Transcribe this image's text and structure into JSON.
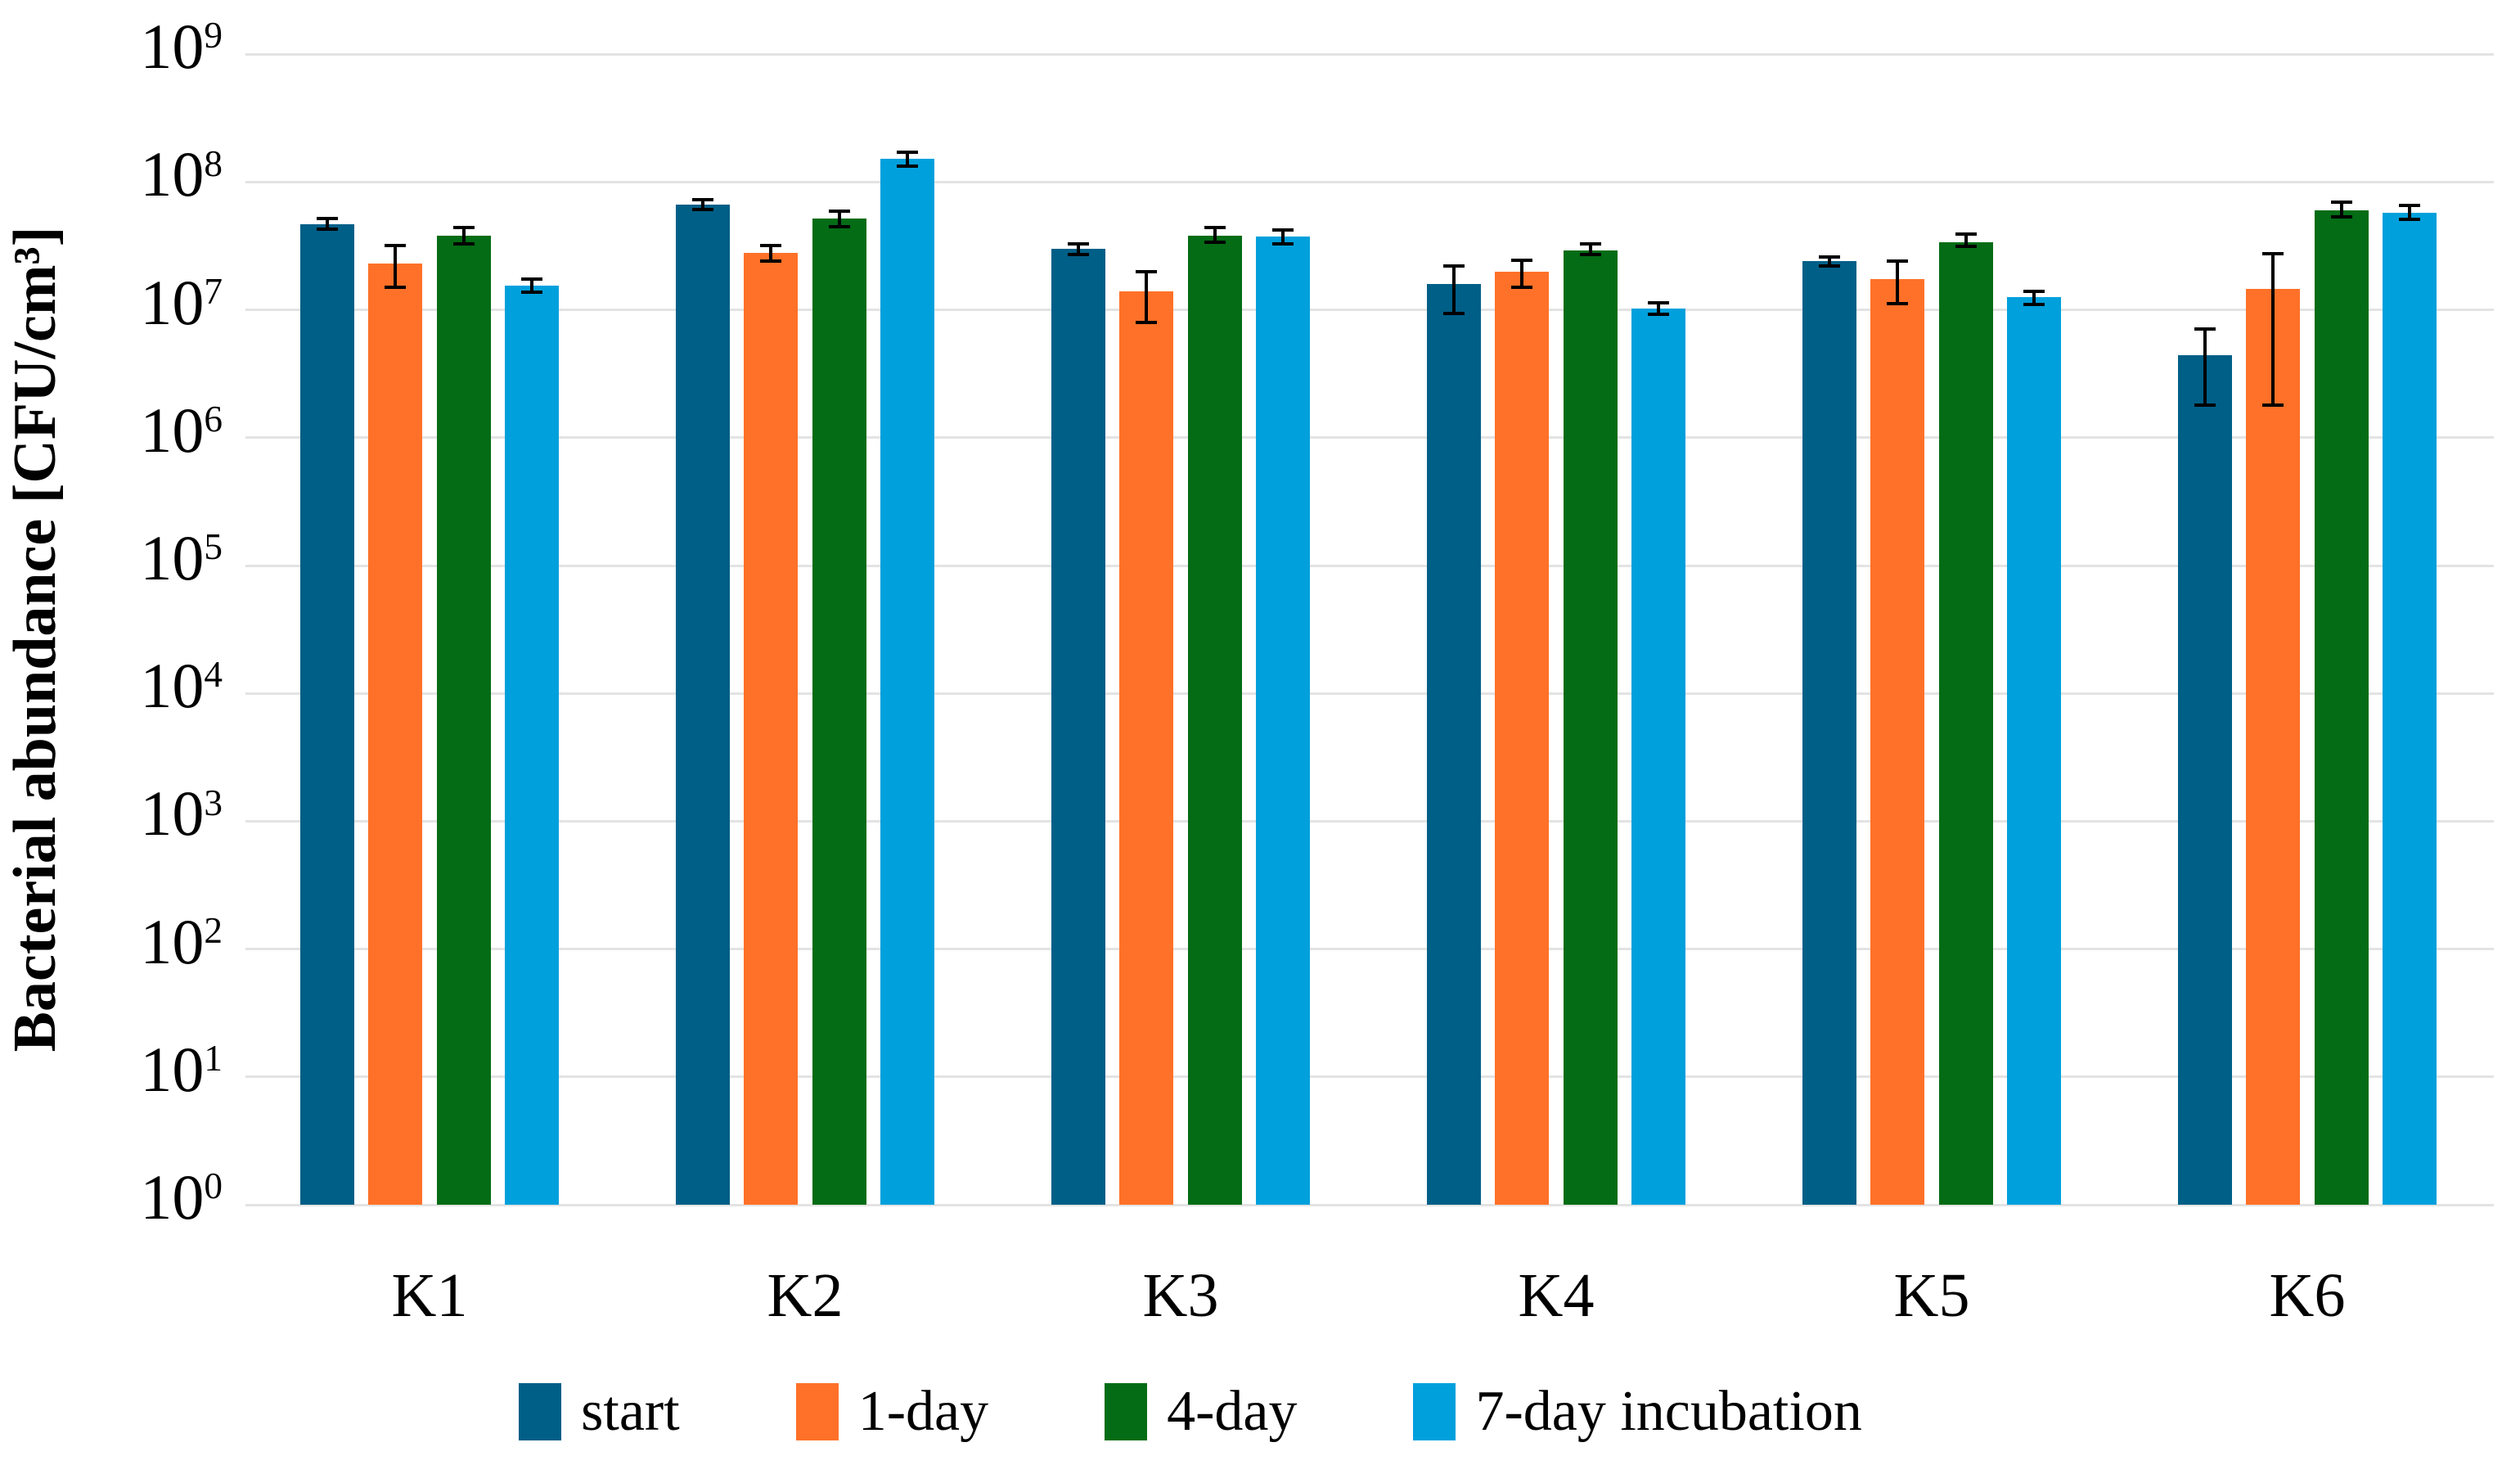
{
  "figure": {
    "background": "#ffffff"
  },
  "chart_data": {
    "type": "bar",
    "title": "",
    "xlabel": "",
    "ylabel": "Bacterial abundance [CFU/cm³]",
    "y_scale": "log10",
    "ylim": [
      1,
      1000000000
    ],
    "y_tick_base": "10",
    "y_tick_exponents": [
      9,
      8,
      7,
      6,
      5,
      4,
      3,
      2,
      1,
      0
    ],
    "grid": "horizontal",
    "gridline_color": "#e3e3e3",
    "error_bar_color": "#000000",
    "legend_position": "bottom",
    "categories": [
      "K1",
      "K2",
      "K3",
      "K4",
      "K5",
      "K6"
    ],
    "series": [
      {
        "name": "start",
        "color": "#005f87",
        "values": [
          47000000,
          67000000,
          30000000,
          16000000,
          24000000,
          4400000
        ],
        "err_lo": [
          43000000,
          61000000,
          27000000,
          9400000,
          22000000,
          1800000
        ],
        "err_hi": [
          52000000,
          73000000,
          33000000,
          22000000,
          26000000,
          7100000
        ]
      },
      {
        "name": "1-day",
        "color": "#ff7128",
        "values": [
          23000000,
          28000000,
          14000000,
          20000000,
          17500000,
          14500000
        ],
        "err_lo": [
          15000000,
          24000000,
          8000000,
          15000000,
          11200000,
          1800000
        ],
        "err_hi": [
          32000000,
          32000000,
          20000000,
          24500000,
          24000000,
          27600000
        ]
      },
      {
        "name": "4-day",
        "color": "#036c15",
        "values": [
          38000000,
          52000000,
          38000000,
          29000000,
          34000000,
          60000000
        ],
        "err_lo": [
          33000000,
          45000000,
          34000000,
          27000000,
          31500000,
          53000000
        ],
        "err_hi": [
          44000000,
          59000000,
          44000000,
          33000000,
          39000000,
          70000000
        ]
      },
      {
        "name": "7-day incubation",
        "color": "#00a0dc",
        "values": [
          15500000,
          153000000,
          37600000,
          10300000,
          12500000,
          57500000
        ],
        "err_lo": [
          13800000,
          134000000,
          33000000,
          9300000,
          11100000,
          51000000
        ],
        "err_hi": [
          17400000,
          172000000,
          42000000,
          11400000,
          14000000,
          66000000
        ]
      }
    ]
  }
}
